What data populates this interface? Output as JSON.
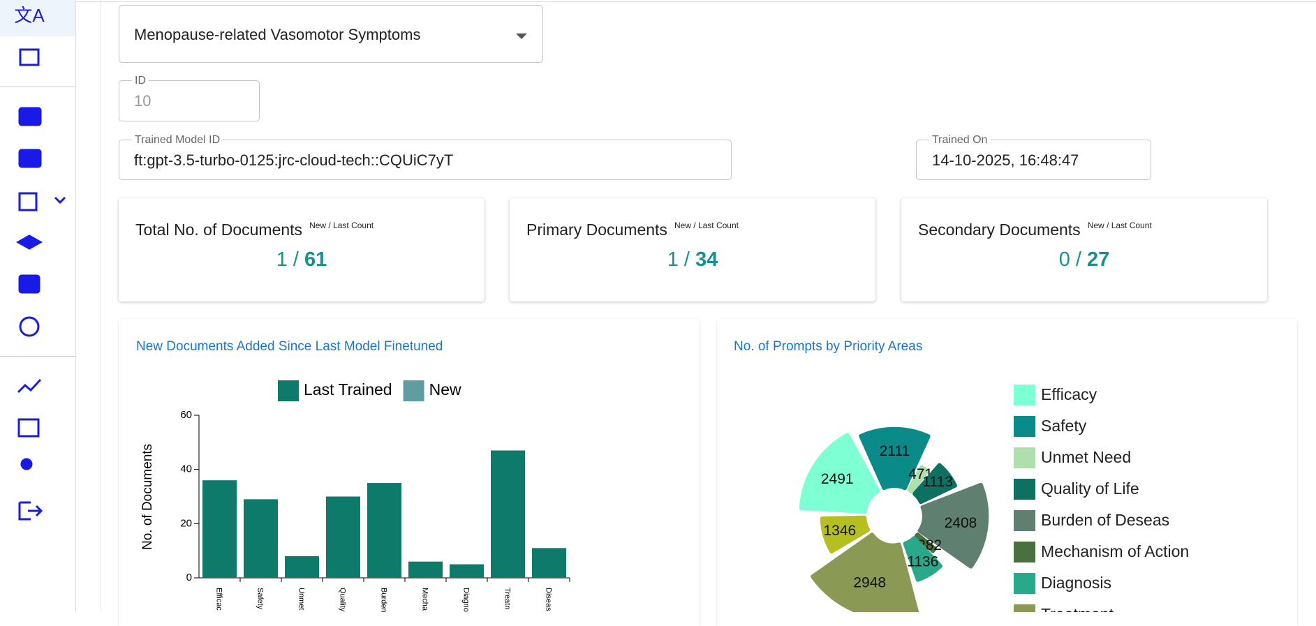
{
  "form": {
    "disease": "Menopause-related Vasomotor Symptoms",
    "id_label": "ID",
    "id_value": 10,
    "model_label": "Trained Model ID",
    "model_value": "ft:gpt-3.5-turbo-0125:jrc-cloud-tech::CQUiC7yT",
    "trained_on_label": "Trained On",
    "trained_on_value": "14-10-2025, 16:48:47"
  },
  "count_separator": "/",
  "cards": [
    {
      "title": "Total No. of Documents",
      "note": "New / Last Count",
      "new": 1,
      "last": 61
    },
    {
      "title": "Primary Documents",
      "note": "New / Last Count",
      "new": 1,
      "last": 34
    },
    {
      "title": "Secondary Documents",
      "note": "New / Last Count",
      "new": 0,
      "last": 27
    }
  ],
  "chart_data": [
    {
      "type": "bar",
      "title": "New Documents Added Since Last Model Finetuned",
      "y_label": "No. of Documents",
      "categories": [
        "Efficac",
        "Safety",
        "Unmet",
        "Quality",
        "Burden",
        "Mecha",
        "Diagno",
        "Treatn",
        "Diseas"
      ],
      "series": [
        {
          "name": "Last Trained",
          "color": "#0e7a6a",
          "values": [
            36,
            29,
            8,
            30,
            35,
            6,
            5,
            47,
            11
          ]
        },
        {
          "name": "New",
          "color": "#5f9ea0",
          "values": [
            0,
            0,
            0,
            0,
            0,
            0,
            0,
            0,
            0
          ]
        }
      ],
      "ylim": [
        0,
        60
      ],
      "yticks": [
        0,
        20,
        40,
        60
      ]
    },
    {
      "type": "pie",
      "title": "No. of Prompts by Priority Areas",
      "categories": [
        "Efficacy",
        "Safety",
        "Unmet Need",
        "Quality of Life",
        "Burden of Deseas",
        "Mechanism of Action",
        "Diagnosis",
        "Treatment",
        null
      ],
      "values": [
        2491,
        2111,
        471,
        1113,
        2408,
        282,
        1136,
        2948,
        1346
      ],
      "colors": [
        "#7fffd4",
        "#0b8a8a",
        "#ade0ad",
        "#0d7060",
        "#5f8070",
        "#4a7040",
        "#2aa88a",
        "#8a9a55",
        "#b5c020"
      ]
    }
  ]
}
